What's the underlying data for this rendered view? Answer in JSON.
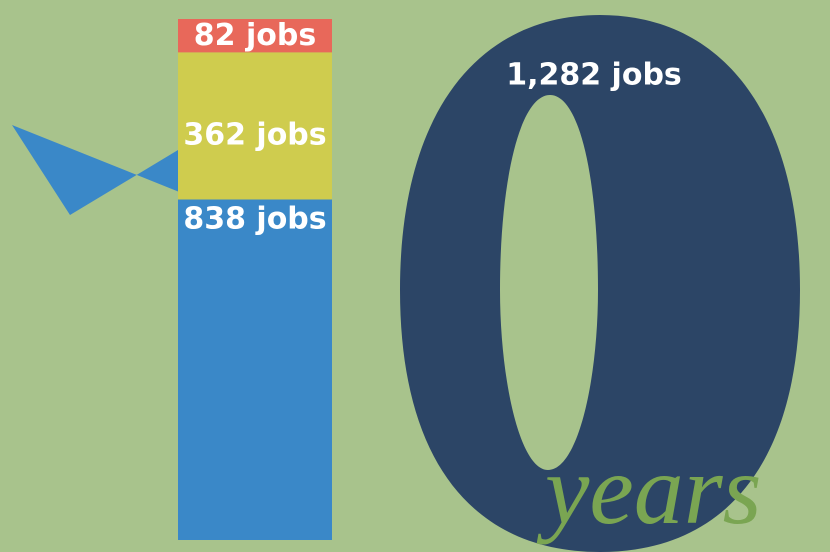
{
  "chart_data": {
    "type": "stacked-one",
    "values": [
      838,
      362,
      82
    ],
    "value_labels": [
      "838 jobs",
      "362 jobs",
      "82 jobs"
    ],
    "colors": [
      "#3a88c8",
      "#cfcc4e",
      "#e8685a"
    ],
    "total": 1282,
    "total_label": "1,282 jobs",
    "total_color": "#2c4566",
    "caption": "years"
  }
}
